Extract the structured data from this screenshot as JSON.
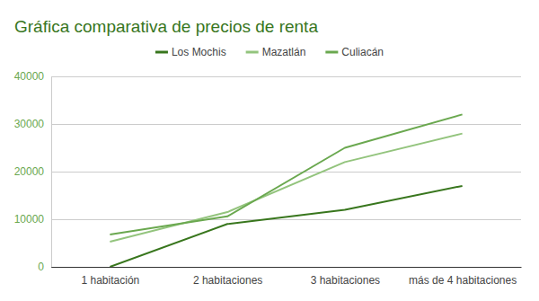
{
  "chart_data": {
    "type": "line",
    "title": "Gráfica comparativa de precios de renta",
    "categories": [
      "1 habitación",
      "2 habitaciones",
      "3 habitaciones",
      "más de 4 habitaciones"
    ],
    "series": [
      {
        "name": "Los Mochis",
        "color": "#38761d",
        "values": [
          0,
          9000,
          12000,
          17000
        ]
      },
      {
        "name": "Mazatlán",
        "color": "#93c47d",
        "values": [
          5300,
          11500,
          22000,
          28000
        ]
      },
      {
        "name": "Culiacán",
        "color": "#6aa84f",
        "values": [
          6800,
          10600,
          25000,
          32000
        ]
      }
    ],
    "ylim": [
      0,
      40000
    ],
    "yticks": [
      0,
      10000,
      20000,
      30000,
      40000
    ],
    "grid": true,
    "legend": "top"
  }
}
